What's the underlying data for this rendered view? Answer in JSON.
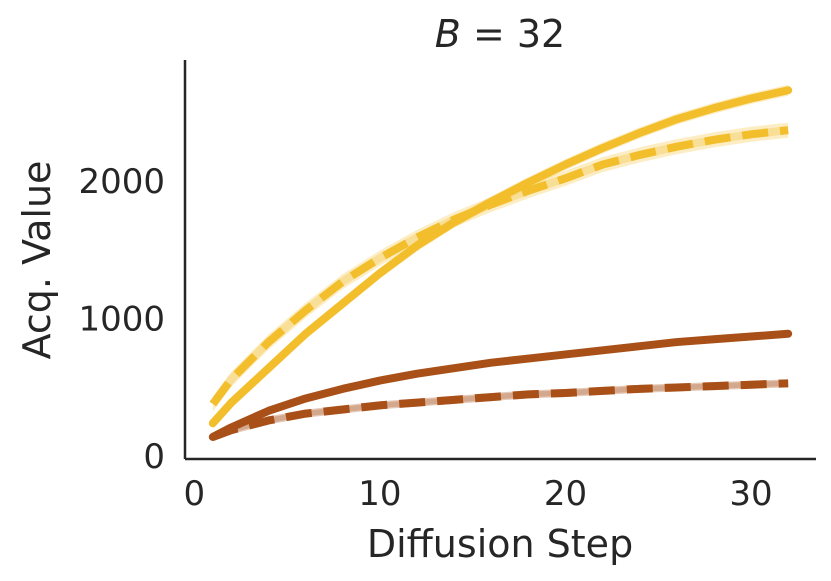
{
  "chart_data": {
    "type": "line",
    "title_var": "B",
    "title_rest": " = 32",
    "xlabel": "Diffusion Step",
    "ylabel": "Acq. Value",
    "xlim": [
      -0.5,
      33.5
    ],
    "ylim": [
      -20,
      2880
    ],
    "xticks": [
      0,
      10,
      20,
      30
    ],
    "xtick_labels": [
      "0",
      "10",
      "20",
      "30"
    ],
    "yticks": [
      0,
      1000,
      2000
    ],
    "ytick_labels": [
      "0",
      "1000",
      "2000"
    ],
    "grid": false,
    "legend": "none",
    "x": [
      1,
      2,
      4,
      6,
      8,
      10,
      12,
      14,
      16,
      18,
      20,
      22,
      24,
      26,
      28,
      30,
      32
    ],
    "series": [
      {
        "color": "#F3BE2B",
        "dashed": false,
        "band": 40,
        "values": [
          240,
          390,
          640,
          890,
          1110,
          1330,
          1530,
          1700,
          1850,
          1990,
          2120,
          2240,
          2350,
          2450,
          2530,
          2600,
          2660
        ]
      },
      {
        "color": "#F3BE2B",
        "dashed": true,
        "band": 55,
        "values": [
          380,
          560,
          830,
          1060,
          1270,
          1440,
          1590,
          1720,
          1830,
          1930,
          2020,
          2120,
          2190,
          2250,
          2300,
          2340,
          2370
        ]
      },
      {
        "color": "#A85018",
        "dashed": false,
        "band": 15,
        "values": [
          140,
          210,
          330,
          420,
          490,
          550,
          600,
          640,
          680,
          710,
          740,
          770,
          800,
          830,
          850,
          870,
          890
        ]
      },
      {
        "color": "#A85018",
        "dashed": true,
        "band": 20,
        "values": [
          140,
          190,
          260,
          310,
          340,
          370,
          390,
          410,
          430,
          450,
          460,
          475,
          490,
          500,
          510,
          520,
          530
        ]
      }
    ]
  }
}
